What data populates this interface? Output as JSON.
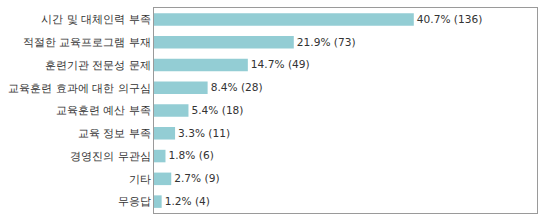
{
  "chart_data": {
    "type": "bar",
    "orientation": "horizontal",
    "categories": [
      "시간 및 대체인력 부족",
      "적절한 교육프로그램 부재",
      "훈련기관 전문성 문제",
      "교육훈련 효과에 대한 의구심",
      "교육훈련 예산 부족",
      "교육 정보 부족",
      "경영진의 무관심",
      "기타",
      "무응답"
    ],
    "values": [
      40.7,
      21.9,
      14.7,
      8.4,
      5.4,
      3.3,
      1.8,
      2.7,
      1.2
    ],
    "value_labels": [
      "40.7% (136)",
      "21.9% (73)",
      "14.7% (49)",
      "8.4% (28)",
      "5.4% (18)",
      "3.3% (11)",
      "1.8% (6)",
      "2.7% (9)",
      "1.2% (4)"
    ],
    "data_labels": true,
    "color": "#93cdd4",
    "xlim": [
      0,
      60
    ],
    "xticks": [],
    "tick_labels": "y",
    "grid": false
  }
}
